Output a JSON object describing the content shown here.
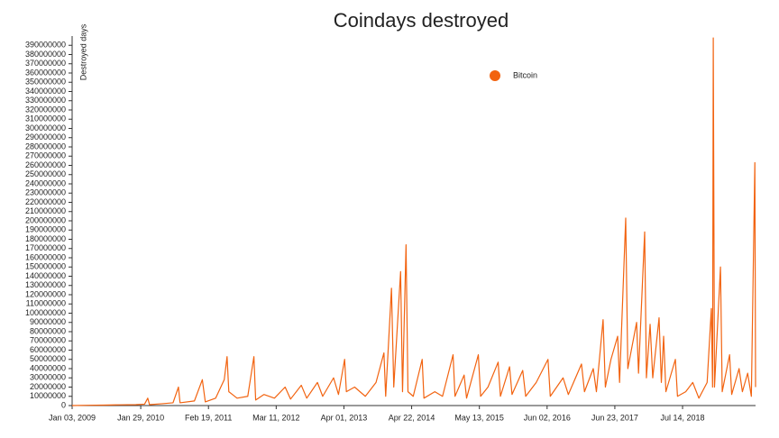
{
  "chart_data": {
    "type": "line",
    "title": "Coindays destroyed",
    "y_label": "Destroyed days",
    "x": [
      "2009-01-03",
      "2009-04-01",
      "2009-07-01",
      "2009-10-01",
      "2010-01-01",
      "2010-02-20",
      "2010-03-10",
      "2010-03-20",
      "2010-06-01",
      "2010-08-01",
      "2010-09-01",
      "2010-09-10",
      "2010-12-01",
      "2011-01-15",
      "2011-02-01",
      "2011-04-01",
      "2011-05-20",
      "2011-06-05",
      "2011-06-15",
      "2011-08-01",
      "2011-10-01",
      "2011-11-05",
      "2011-11-15",
      "2012-01-01",
      "2012-03-01",
      "2012-05-01",
      "2012-06-01",
      "2012-08-01",
      "2012-09-01",
      "2012-11-01",
      "2012-12-01",
      "2013-02-01",
      "2013-03-01",
      "2013-04-05",
      "2013-04-15",
      "2013-06-01",
      "2013-08-01",
      "2013-10-01",
      "2013-11-15",
      "2013-11-25",
      "2013-12-28",
      "2014-01-10",
      "2014-02-18",
      "2014-03-01",
      "2014-03-21",
      "2014-04-01",
      "2014-05-01",
      "2014-06-21",
      "2014-07-01",
      "2014-09-01",
      "2014-10-15",
      "2014-12-14",
      "2014-12-25",
      "2015-02-15",
      "2015-03-01",
      "2015-05-07",
      "2015-05-20",
      "2015-07-01",
      "2015-08-28",
      "2015-09-10",
      "2015-11-01",
      "2015-11-15",
      "2016-01-15",
      "2016-02-01",
      "2016-04-01",
      "2016-06-07",
      "2016-06-20",
      "2016-09-01",
      "2016-10-01",
      "2016-12-15",
      "2017-01-01",
      "2017-02-20",
      "2017-03-10",
      "2017-04-17",
      "2017-04-30",
      "2017-06-01",
      "2017-07-09",
      "2017-07-20",
      "2017-08-24",
      "2017-09-05",
      "2017-10-25",
      "2017-11-05",
      "2017-12-10",
      "2017-12-20",
      "2018-01-10",
      "2018-01-25",
      "2018-03-02",
      "2018-03-15",
      "2018-03-28",
      "2018-04-10",
      "2018-06-03",
      "2018-06-15",
      "2018-08-01",
      "2018-09-10",
      "2018-10-15",
      "2018-12-01",
      "2018-12-25",
      "2019-01-01",
      "2019-01-05",
      "2019-01-12",
      "2019-02-15",
      "2019-02-25",
      "2019-04-08",
      "2019-04-20",
      "2019-06-01",
      "2019-06-20",
      "2019-07-20",
      "2019-08-10",
      "2019-08-30",
      "2019-09-03"
    ],
    "series": [
      {
        "name": "Bitcoin",
        "color": "#f26310",
        "values": [
          0,
          300000,
          500000,
          800000,
          1000000,
          1500000,
          8000000,
          1000000,
          2000000,
          3000000,
          20000000,
          3000000,
          5000000,
          28000000,
          4000000,
          8000000,
          28000000,
          53000000,
          15000000,
          8000000,
          10000000,
          53000000,
          6000000,
          12000000,
          8000000,
          20000000,
          7000000,
          22000000,
          8000000,
          25000000,
          10000000,
          30000000,
          12000000,
          50000000,
          15000000,
          20000000,
          10000000,
          25000000,
          57000000,
          10000000,
          127000000,
          20000000,
          145000000,
          15000000,
          174000000,
          15000000,
          10000000,
          50000000,
          8000000,
          15000000,
          10000000,
          55000000,
          10000000,
          33000000,
          8000000,
          55000000,
          10000000,
          20000000,
          47000000,
          10000000,
          42000000,
          12000000,
          38000000,
          10000000,
          25000000,
          50000000,
          10000000,
          30000000,
          12000000,
          45000000,
          15000000,
          40000000,
          15000000,
          93000000,
          20000000,
          50000000,
          75000000,
          25000000,
          203000000,
          40000000,
          90000000,
          35000000,
          188000000,
          30000000,
          88000000,
          30000000,
          95000000,
          25000000,
          75000000,
          15000000,
          50000000,
          10000000,
          15000000,
          25000000,
          8000000,
          25000000,
          105000000,
          20000000,
          398000000,
          20000000,
          150000000,
          15000000,
          55000000,
          12000000,
          40000000,
          15000000,
          35000000,
          10000000,
          263000000,
          20000000
        ]
      }
    ],
    "xlim": [
      "2009-01-03",
      "2019-09-03"
    ],
    "xticks": [
      {
        "value": "2009-01-03",
        "label": "Jan 03, 2009"
      },
      {
        "value": "2010-01-29",
        "label": "Jan 29, 2010"
      },
      {
        "value": "2011-02-19",
        "label": "Feb 19, 2011"
      },
      {
        "value": "2012-03-11",
        "label": "Mar 11, 2012"
      },
      {
        "value": "2013-04-01",
        "label": "Apr 01, 2013"
      },
      {
        "value": "2014-04-22",
        "label": "Apr 22, 2014"
      },
      {
        "value": "2015-05-13",
        "label": "May 13, 2015"
      },
      {
        "value": "2016-06-02",
        "label": "Jun 02, 2016"
      },
      {
        "value": "2017-06-23",
        "label": "Jun 23, 2017"
      },
      {
        "value": "2018-07-14",
        "label": "Jul 14, 2018"
      }
    ],
    "ylim": [
      0,
      400000000
    ],
    "yticks": [
      0,
      10000000,
      20000000,
      30000000,
      40000000,
      50000000,
      60000000,
      70000000,
      80000000,
      90000000,
      100000000,
      110000000,
      120000000,
      130000000,
      140000000,
      150000000,
      160000000,
      170000000,
      180000000,
      190000000,
      200000000,
      210000000,
      220000000,
      230000000,
      240000000,
      250000000,
      260000000,
      270000000,
      280000000,
      290000000,
      300000000,
      310000000,
      320000000,
      330000000,
      340000000,
      350000000,
      360000000,
      370000000,
      380000000,
      390000000
    ],
    "legend": "top-right"
  }
}
